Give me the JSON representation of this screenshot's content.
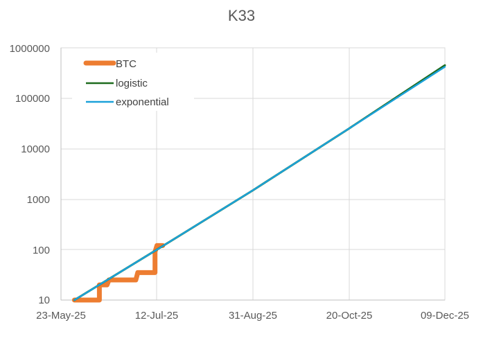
{
  "chart_data": {
    "type": "line",
    "title": "K33",
    "xlabel": "",
    "ylabel": "",
    "y_scale": "log",
    "ylim": [
      10,
      1000000
    ],
    "y_ticks": [
      "10",
      "100",
      "1000",
      "10000",
      "100000",
      "1000000"
    ],
    "x_ticks": [
      "23-May-25",
      "12-Jul-25",
      "31-Aug-25",
      "20-Oct-25",
      "09-Dec-25"
    ],
    "xlim": [
      "2025-05-23",
      "2025-12-09"
    ],
    "grid": true,
    "legend_position": "upper-left",
    "series": [
      {
        "name": "BTC",
        "color": "#ED7D31",
        "style": "thick-step",
        "points": [
          {
            "x": "2025-05-30",
            "y": 10
          },
          {
            "x": "2025-06-12",
            "y": 10
          },
          {
            "x": "2025-06-12",
            "y": 20
          },
          {
            "x": "2025-06-16",
            "y": 20
          },
          {
            "x": "2025-06-17",
            "y": 25
          },
          {
            "x": "2025-07-01",
            "y": 25
          },
          {
            "x": "2025-07-02",
            "y": 35
          },
          {
            "x": "2025-07-11",
            "y": 35
          },
          {
            "x": "2025-07-11",
            "y": 90
          },
          {
            "x": "2025-07-12",
            "y": 120
          },
          {
            "x": "2025-07-15",
            "y": 120
          }
        ]
      },
      {
        "name": "logistic",
        "color": "#1E6B1E",
        "points": [
          {
            "x": "2025-05-30",
            "y": 10
          },
          {
            "x": "2025-07-12",
            "y": 100
          },
          {
            "x": "2025-08-31",
            "y": 1500
          },
          {
            "x": "2025-10-20",
            "y": 25000
          },
          {
            "x": "2025-12-09",
            "y": 450000
          }
        ]
      },
      {
        "name": "exponential",
        "color": "#1BA1D9",
        "points": [
          {
            "x": "2025-05-30",
            "y": 10
          },
          {
            "x": "2025-07-12",
            "y": 100
          },
          {
            "x": "2025-08-31",
            "y": 1500
          },
          {
            "x": "2025-10-20",
            "y": 25000
          },
          {
            "x": "2025-12-09",
            "y": 420000
          }
        ]
      }
    ]
  },
  "legend": {
    "items": [
      {
        "label": "BTC",
        "color": "#ED7D31"
      },
      {
        "label": "logistic",
        "color": "#1E6B1E"
      },
      {
        "label": "exponential",
        "color": "#1BA1D9"
      }
    ]
  },
  "colors": {
    "grid": "#D9D9D9",
    "axis": "#BFBFBF",
    "text": "#595959"
  }
}
